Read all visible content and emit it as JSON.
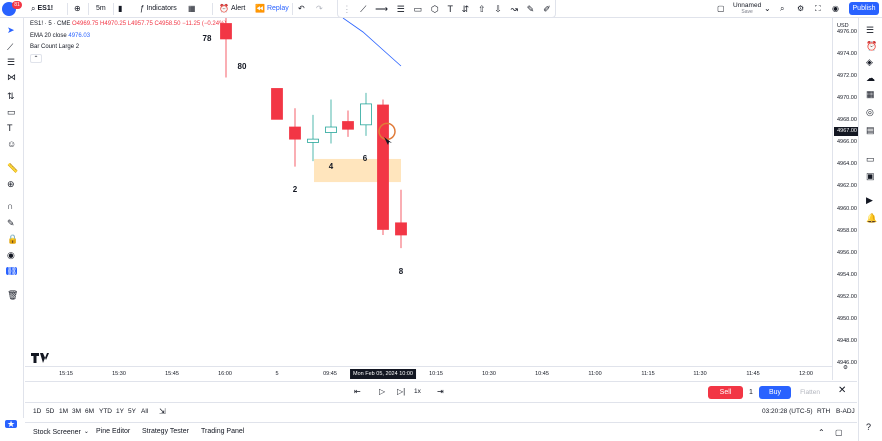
{
  "header": {
    "symbol": "ES1!",
    "notification_count": "81",
    "interval": "5m",
    "indicators_label": "Indicators",
    "alert_label": "Alert",
    "replay_label": "Replay",
    "layout_name": "Unnamed",
    "layout_status": "Save",
    "publish_label": "Publish"
  },
  "legend": {
    "symbol_line": "ES1! · 5 · CME",
    "open": "O4969.75",
    "high": "H4970.25",
    "low": "L4957.75",
    "close": "C4958.50",
    "change": "−11.25 (−0.24%)",
    "ema_label": "EMA 20 close",
    "ema_value": "4976.03",
    "barcount_label": "Bar Count Large 2"
  },
  "chart_data": {
    "type": "candlestick",
    "y_axis": {
      "currency": "USD",
      "ticks": [
        "4976.00",
        "4974.00",
        "4972.00",
        "4970.00",
        "4968.00",
        "4966.00",
        "4964.00",
        "4962.00",
        "4960.00",
        "4958.00",
        "4956.00",
        "4954.00",
        "4952.00",
        "4950.00",
        "4948.00",
        "4946.00"
      ],
      "current_price": "4967.00",
      "ylim": [
        4945.7,
        4977.3
      ]
    },
    "x_axis": {
      "ticks": [
        "15:15",
        "15:30",
        "15:45",
        "16:00",
        "5",
        "09:45",
        "10:15",
        "10:30",
        "10:45",
        "11:00",
        "11:15",
        "11:30",
        "11:45",
        "12:00"
      ],
      "cursor_date": "Mon Feb 05, 2024  10:00"
    },
    "candles": [
      {
        "o": 4976.8,
        "h": 4977.3,
        "l": 4971.9,
        "c": 4975.4,
        "dir": "down"
      },
      {
        "o": 4970.9,
        "h": 4970.9,
        "l": 4968.1,
        "c": 4968.1,
        "dir": "down"
      },
      {
        "o": 4967.4,
        "h": 4969.1,
        "l": 4963.8,
        "c": 4966.3,
        "dir": "down"
      },
      {
        "o": 4966.0,
        "h": 4968.5,
        "l": 4964.3,
        "c": 4966.3,
        "dir": "up"
      },
      {
        "o": 4966.9,
        "h": 4969.9,
        "l": 4965.9,
        "c": 4967.4,
        "dir": "up"
      },
      {
        "o": 4967.9,
        "h": 4968.9,
        "l": 4966.5,
        "c": 4967.2,
        "dir": "down"
      },
      {
        "o": 4967.6,
        "h": 4970.5,
        "l": 4966.6,
        "c": 4969.5,
        "dir": "up"
      },
      {
        "o": 4969.4,
        "h": 4969.9,
        "l": 4957.6,
        "c": 4958.1,
        "dir": "down"
      },
      {
        "o": 4958.7,
        "h": 4961.7,
        "l": 4956.4,
        "c": 4957.6,
        "dir": "down"
      }
    ],
    "annotations": [
      "78",
      "80",
      "2",
      "4",
      "6",
      "8"
    ],
    "zone": {
      "top": 4964.5,
      "bottom": 4962.4
    }
  },
  "replay": {
    "speed": "1x",
    "sell_label": "Sell",
    "quantity": "1",
    "buy_label": "Buy",
    "flatten_label": "Flatten"
  },
  "ranges": [
    "1D",
    "5D",
    "1M",
    "3M",
    "6M",
    "YTD",
    "1Y",
    "5Y",
    "All"
  ],
  "status": {
    "clock": "03:20:28 (UTC-5)",
    "session": "RTH",
    "adjust": "B-ADJ"
  },
  "bottom_tabs": [
    "Stock Screener",
    "Pine Editor",
    "Strategy Tester",
    "Trading Panel"
  ],
  "colors": {
    "bear": "#f23645",
    "bull_border": "#26a69a",
    "accent": "#2962ff",
    "zone": "#ffe0b2"
  }
}
